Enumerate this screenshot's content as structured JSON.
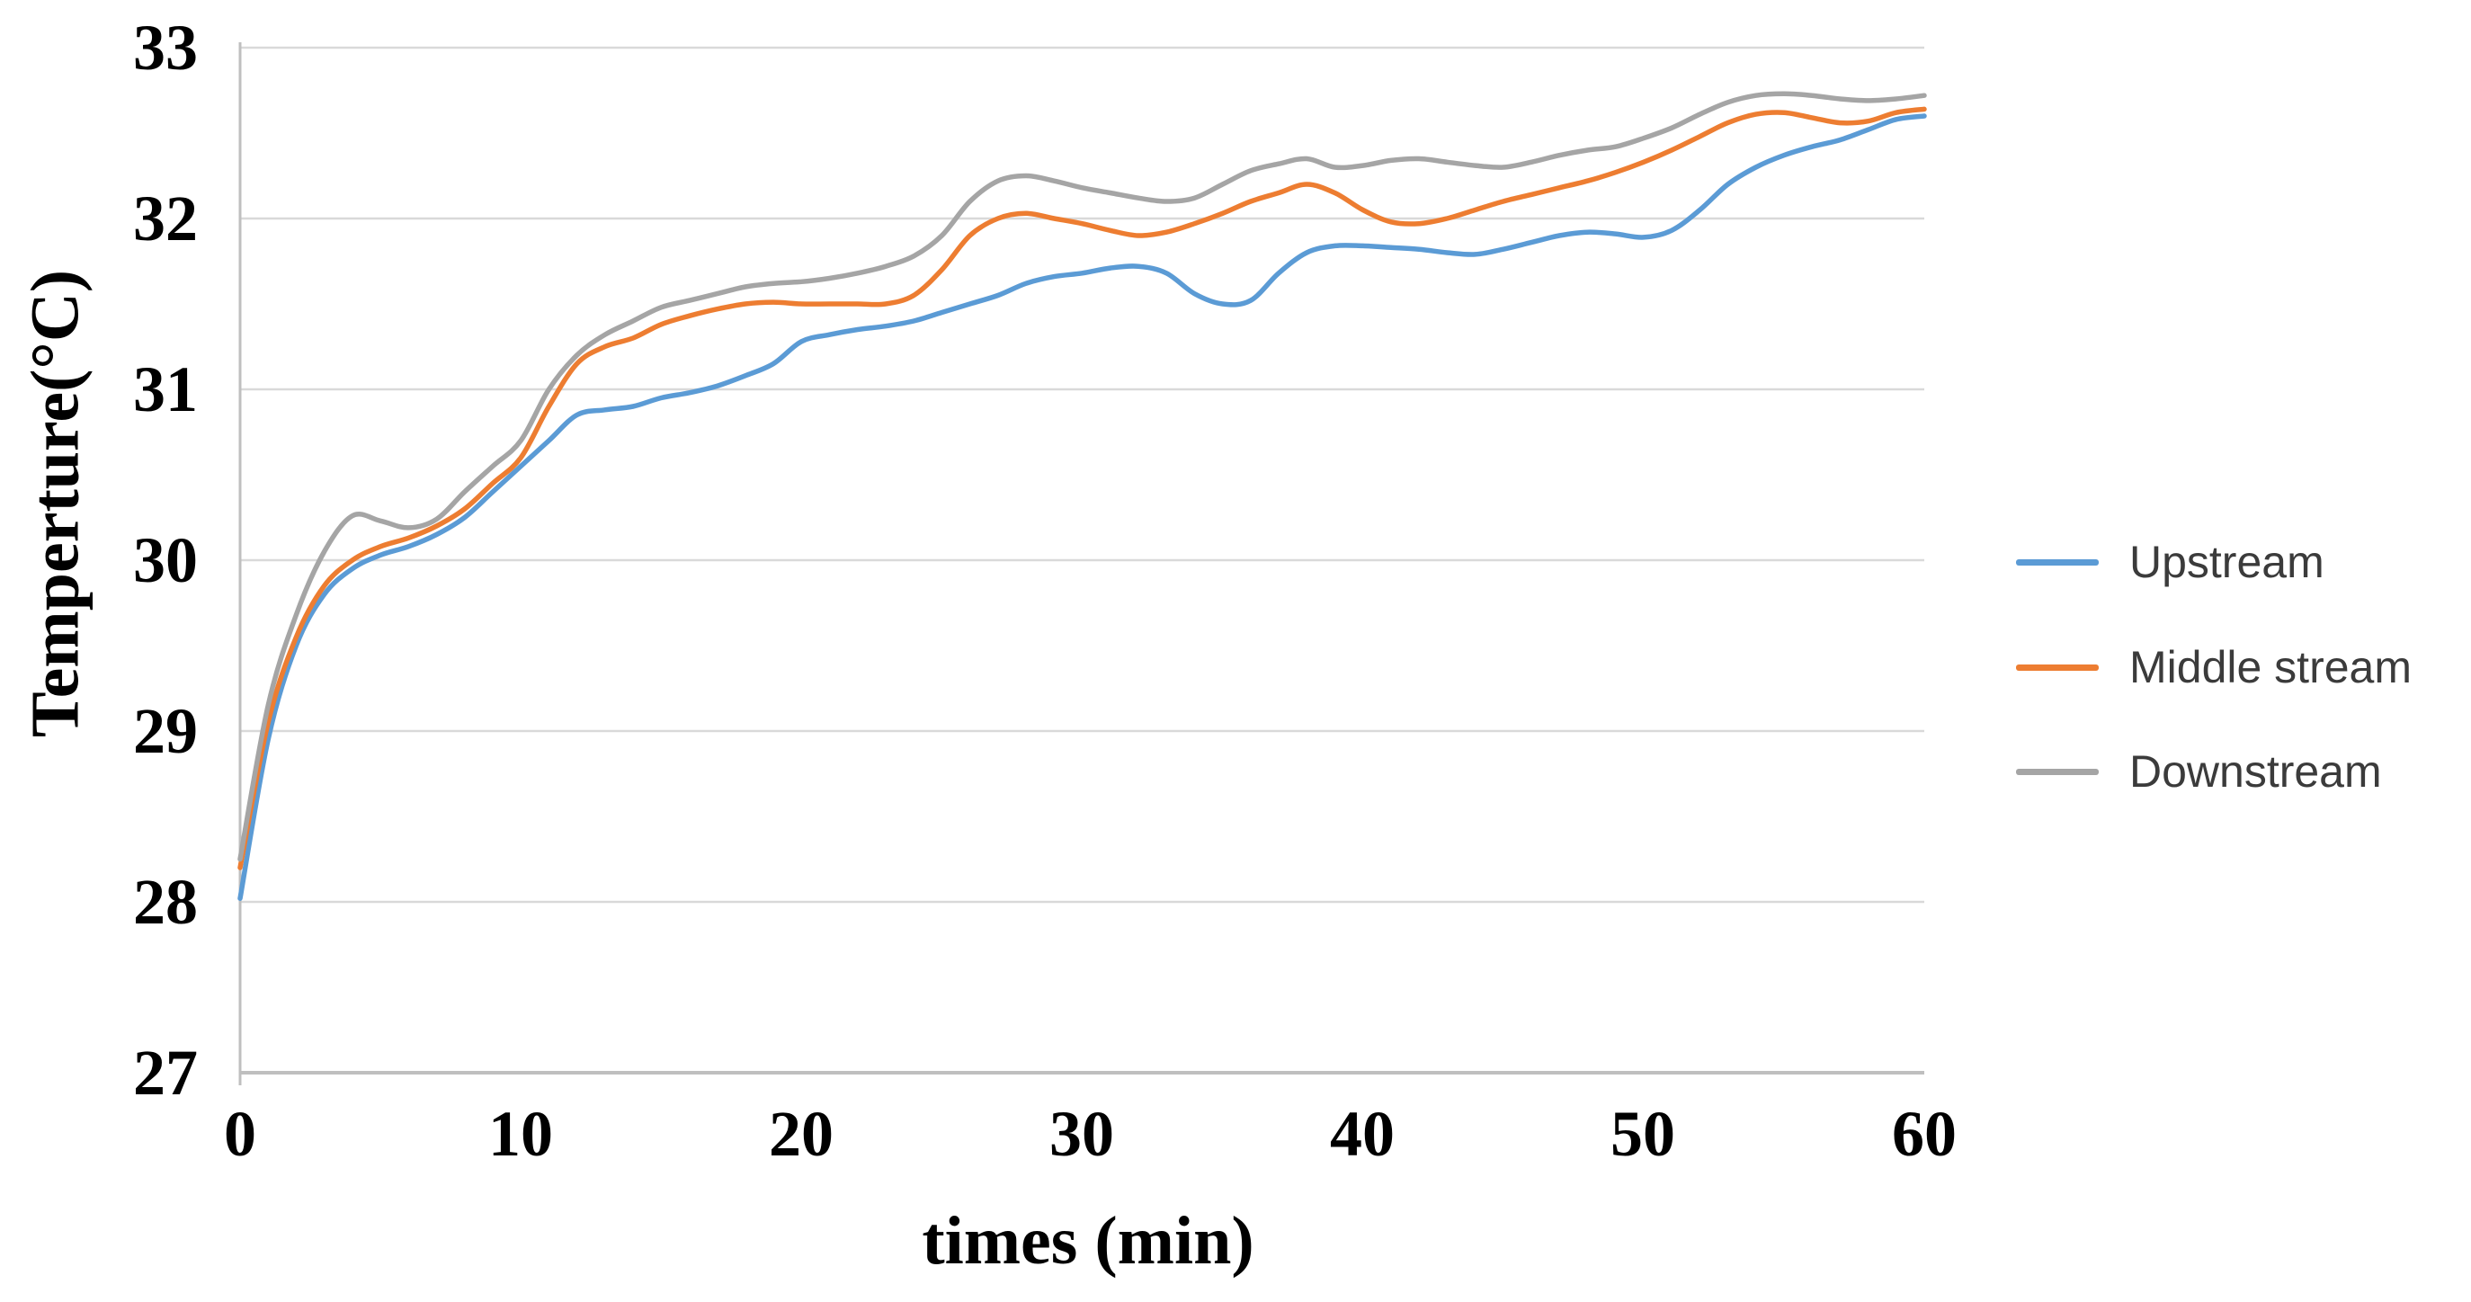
{
  "chart_data": {
    "type": "line",
    "title": "",
    "xlabel": "times (min)",
    "ylabel": "Temperture(°C)",
    "xlim": [
      0,
      60
    ],
    "ylim": [
      27,
      33
    ],
    "x_ticks": [
      0,
      10,
      20,
      30,
      40,
      50,
      60
    ],
    "y_ticks": [
      33,
      32,
      31,
      30,
      29,
      28,
      27
    ],
    "grid": "horizontal-only",
    "legend_position": "right-middle",
    "x": [
      0,
      1,
      2,
      3,
      4,
      5,
      6,
      7,
      8,
      9,
      10,
      11,
      12,
      13,
      14,
      15,
      16,
      17,
      18,
      19,
      20,
      21,
      22,
      23,
      24,
      25,
      26,
      27,
      28,
      29,
      30,
      31,
      32,
      33,
      34,
      35,
      36,
      37,
      38,
      39,
      40,
      41,
      42,
      43,
      44,
      45,
      46,
      47,
      48,
      49,
      50,
      51,
      52,
      53,
      54,
      55,
      56,
      57,
      58,
      59,
      60
    ],
    "series": [
      {
        "name": "Upstream",
        "color": "#5B9BD5",
        "values": [
          28.02,
          28.95,
          29.5,
          29.8,
          29.95,
          30.03,
          30.08,
          30.15,
          30.25,
          30.4,
          30.55,
          30.7,
          30.85,
          30.88,
          30.9,
          30.95,
          30.98,
          31.02,
          31.08,
          31.15,
          31.28,
          31.32,
          31.35,
          31.37,
          31.4,
          31.45,
          31.5,
          31.55,
          31.62,
          31.66,
          31.68,
          31.71,
          31.72,
          31.68,
          31.56,
          31.5,
          31.52,
          31.68,
          31.8,
          31.84,
          31.84,
          31.83,
          31.82,
          31.8,
          31.79,
          31.82,
          31.86,
          31.9,
          31.92,
          31.91,
          31.89,
          31.93,
          32.05,
          32.2,
          32.3,
          32.37,
          32.42,
          32.46,
          32.52,
          32.58,
          32.6
        ]
      },
      {
        "name": "Middle stream",
        "color": "#ED7D31",
        "values": [
          28.2,
          29.05,
          29.55,
          29.85,
          30.0,
          30.08,
          30.13,
          30.2,
          30.3,
          30.45,
          30.6,
          30.9,
          31.15,
          31.25,
          31.3,
          31.38,
          31.43,
          31.47,
          31.5,
          31.51,
          31.5,
          31.5,
          31.5,
          31.5,
          31.55,
          31.7,
          31.9,
          32.0,
          32.03,
          32.0,
          31.97,
          31.93,
          31.9,
          31.92,
          31.97,
          32.03,
          32.1,
          32.15,
          32.2,
          32.15,
          32.05,
          31.98,
          31.97,
          32.0,
          32.05,
          32.1,
          32.14,
          32.18,
          32.22,
          32.27,
          32.33,
          32.4,
          32.48,
          32.56,
          32.61,
          32.62,
          32.59,
          32.56,
          32.57,
          32.62,
          32.64
        ]
      },
      {
        "name": "Downstream",
        "color": "#A5A5A5",
        "values": [
          28.25,
          29.15,
          29.68,
          30.05,
          30.26,
          30.23,
          30.19,
          30.24,
          30.4,
          30.55,
          30.7,
          31.0,
          31.2,
          31.32,
          31.4,
          31.48,
          31.52,
          31.56,
          31.6,
          31.62,
          31.63,
          31.65,
          31.68,
          31.72,
          31.78,
          31.9,
          32.1,
          32.22,
          32.25,
          32.22,
          32.18,
          32.15,
          32.12,
          32.1,
          32.12,
          32.2,
          32.28,
          32.32,
          32.35,
          32.3,
          32.31,
          32.34,
          32.35,
          32.33,
          32.31,
          32.3,
          32.33,
          32.37,
          32.4,
          32.42,
          32.47,
          32.53,
          32.61,
          32.68,
          32.72,
          32.73,
          32.72,
          32.7,
          32.69,
          32.7,
          32.72
        ]
      }
    ],
    "colors": {
      "gridline": "#D9D9D9",
      "axis_line": "#BFBFBF",
      "tick_label": "#000000",
      "legend_label": "#3B3B3B",
      "background": "#FFFFFF"
    }
  }
}
